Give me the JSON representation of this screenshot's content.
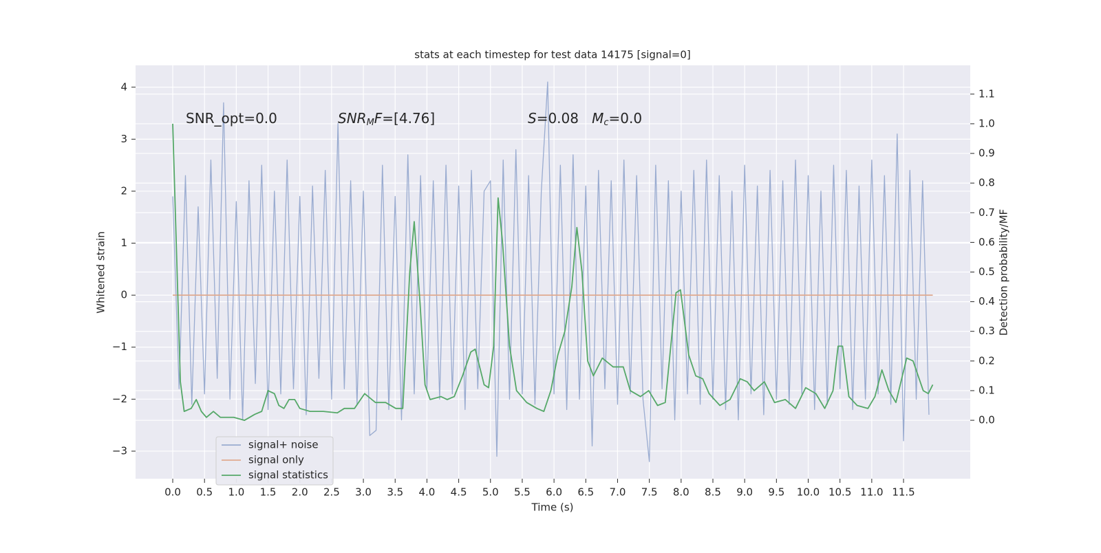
{
  "chart_data": {
    "type": "line",
    "title": "stats at each timestep for test data 14175 [signal=0]",
    "xlabel": "Time (s)",
    "ylabel": "Whitened strain",
    "y2label": "Detection probability/MF",
    "xlim": [
      -0.585,
      12.55
    ],
    "ylim": [
      -3.53,
      4.42
    ],
    "y2lim": [
      -0.197,
      1.197
    ],
    "xticks": [
      {
        "value": 0,
        "label": "0.0"
      },
      0.5,
      {
        "value": 1,
        "label": "1.0"
      },
      1.5,
      {
        "value": 2,
        "label": "2.0"
      },
      2.5,
      {
        "value": 3,
        "label": "3.0"
      },
      3.5,
      {
        "value": 4,
        "label": "4.0"
      },
      4.5,
      {
        "value": 5,
        "label": "5.0"
      },
      5.5,
      {
        "value": 6,
        "label": "6.0"
      },
      6.5,
      {
        "value": 7,
        "label": "7.0"
      },
      7.5,
      {
        "value": 8,
        "label": "8.0"
      },
      8.5,
      {
        "value": 9,
        "label": "9.0"
      },
      9.5,
      {
        "value": 10,
        "label": "10.0"
      },
      10.5,
      {
        "value": 11,
        "label": "11.0"
      },
      11.5
    ],
    "yticks": [
      {
        "value": -3,
        "label": "−3"
      },
      {
        "value": -2,
        "label": "−2"
      },
      {
        "value": -1,
        "label": "−1"
      },
      0,
      1,
      2,
      3,
      4
    ],
    "y2ticks": [
      {
        "value": 0,
        "label": "0.0"
      },
      0.1,
      0.2,
      0.3,
      0.4,
      0.5,
      0.6,
      0.7,
      0.8,
      0.9,
      {
        "value": 1,
        "label": "1.0"
      },
      1.1
    ],
    "grid": true,
    "legend": "lower left",
    "annotations": [
      [
        {
          "text": "SNR_opt=0.0"
        }
      ],
      [
        {
          "text": "SNR",
          "italic": true
        },
        {
          "text": "M",
          "italic": true,
          "sub": true
        },
        {
          "text": "F",
          "italic": true
        },
        {
          "text": "=[4.76]"
        }
      ],
      [
        {
          "text": "S",
          "italic": true
        },
        {
          "text": "=0.08   "
        },
        {
          "text": "M",
          "italic": true
        },
        {
          "text": "c",
          "italic": true,
          "sub": true
        },
        {
          "text": "=0.0"
        }
      ]
    ],
    "series": [
      {
        "name": "signal+ noise",
        "color": "#99abd0",
        "x": [
          0,
          0.1,
          0.2,
          0.3,
          0.4,
          0.5,
          0.6,
          0.7,
          0.8,
          0.9,
          1,
          1.1,
          1.2,
          1.3,
          1.4,
          1.5,
          1.6,
          1.7,
          1.8,
          1.9,
          2,
          2.1,
          2.2,
          2.3,
          2.4,
          2.5,
          2.6,
          2.7,
          2.8,
          2.9,
          3,
          3.1,
          3.2,
          3.3,
          3.4,
          3.5,
          3.6,
          3.7,
          3.8,
          3.9,
          4,
          4.1,
          4.2,
          4.3,
          4.4,
          4.5,
          4.6,
          4.7,
          4.8,
          4.9,
          5,
          5.1,
          5.2,
          5.3,
          5.4,
          5.5,
          5.6,
          5.7,
          5.8,
          5.9,
          6,
          6.1,
          6.2,
          6.3,
          6.4,
          6.5,
          6.6,
          6.7,
          6.8,
          6.9,
          7,
          7.1,
          7.2,
          7.3,
          7.4,
          7.5,
          7.6,
          7.7,
          7.8,
          7.9,
          8,
          8.1,
          8.2,
          8.3,
          8.4,
          8.5,
          8.6,
          8.7,
          8.8,
          8.9,
          9,
          9.1,
          9.2,
          9.3,
          9.4,
          9.5,
          9.6,
          9.7,
          9.8,
          9.9,
          10,
          10.1,
          10.2,
          10.3,
          10.4,
          10.5,
          10.6,
          10.7,
          10.8,
          10.9,
          11,
          11.1,
          11.2,
          11.3,
          11.4,
          11.5,
          11.6,
          11.7,
          11.8,
          11.9
        ],
        "values": [
          1.9,
          -1.8,
          2.3,
          -2.1,
          1.7,
          -1.9,
          2.6,
          -1.6,
          3.7,
          -2.0,
          1.8,
          -2.4,
          2.2,
          -1.7,
          2.5,
          -2.2,
          2.0,
          -1.9,
          2.6,
          -1.8,
          1.9,
          -2.3,
          2.1,
          -1.6,
          2.4,
          -2.0,
          3.3,
          -1.8,
          2.2,
          -2.1,
          2.0,
          -2.7,
          -2.6,
          2.5,
          -2.2,
          1.9,
          -2.4,
          2.7,
          -1.9,
          2.3,
          -1.8,
          2.2,
          -2.0,
          2.5,
          -1.9,
          2.1,
          -2.2,
          2.4,
          -1.8,
          2.0,
          2.2,
          -3.1,
          2.6,
          -2.0,
          2.8,
          -1.9,
          2.3,
          -2.1,
          2.0,
          4.1,
          -1.9,
          2.5,
          -2.2,
          2.7,
          -2.0,
          2.1,
          -2.9,
          2.4,
          -1.8,
          2.2,
          -2.1,
          2.6,
          -1.9,
          2.3,
          -2.0,
          -3.2,
          2.5,
          -1.8,
          2.2,
          -2.4,
          2.0,
          -1.9,
          2.4,
          -2.1,
          2.6,
          -2.0,
          2.3,
          -2.2,
          2.0,
          -2.4,
          2.5,
          -1.9,
          2.1,
          -2.3,
          2.4,
          -2.0,
          2.2,
          -2.1,
          2.6,
          -1.9,
          2.3,
          -2.2,
          2.0,
          -2.1,
          2.5,
          -1.8,
          2.4,
          -2.2,
          2.1,
          -2.0,
          2.6,
          -1.9,
          2.3,
          -2.1,
          3.1,
          -2.8,
          2.4,
          -2.0,
          2.2,
          -2.3
        ]
      },
      {
        "name": "signal only",
        "color": "#e0aa8f",
        "x": [
          0,
          11.96
        ],
        "values": [
          0,
          0
        ]
      },
      {
        "name": "signal statistics",
        "color": "#55a868",
        "axis": "y2",
        "x": [
          0,
          0.12,
          0.18,
          0.29,
          0.37,
          0.45,
          0.53,
          0.64,
          0.75,
          0.96,
          1.13,
          1.29,
          1.4,
          1.5,
          1.6,
          1.67,
          1.75,
          1.83,
          1.92,
          2,
          2.16,
          2.37,
          2.59,
          2.7,
          2.86,
          3.02,
          3.19,
          3.35,
          3.51,
          3.62,
          3.73,
          3.8,
          3.89,
          3.97,
          4.05,
          4.22,
          4.32,
          4.43,
          4.56,
          4.69,
          4.76,
          4.9,
          4.97,
          5.05,
          5.12,
          5.19,
          5.3,
          5.41,
          5.57,
          5.73,
          5.84,
          5.95,
          6.06,
          6.17,
          6.28,
          6.36,
          6.44,
          6.53,
          6.62,
          6.76,
          6.93,
          7.09,
          7.2,
          7.36,
          7.49,
          7.63,
          7.75,
          7.92,
          7.99,
          8.12,
          8.23,
          8.34,
          8.44,
          8.61,
          8.77,
          8.93,
          9.04,
          9.15,
          9.31,
          9.47,
          9.64,
          9.8,
          9.96,
          10.12,
          10.26,
          10.39,
          10.47,
          10.54,
          10.64,
          10.77,
          10.94,
          11.05,
          11.16,
          11.27,
          11.38,
          11.55,
          11.65,
          11.81,
          11.89,
          11.96
        ],
        "values": [
          1.0,
          0.13,
          0.03,
          0.04,
          0.07,
          0.03,
          0.01,
          0.03,
          0.01,
          0.01,
          0.0,
          0.02,
          0.03,
          0.1,
          0.09,
          0.05,
          0.04,
          0.07,
          0.07,
          0.04,
          0.03,
          0.03,
          0.025,
          0.04,
          0.04,
          0.09,
          0.06,
          0.06,
          0.04,
          0.04,
          0.5,
          0.67,
          0.4,
          0.12,
          0.07,
          0.08,
          0.07,
          0.08,
          0.15,
          0.23,
          0.24,
          0.12,
          0.11,
          0.25,
          0.75,
          0.6,
          0.25,
          0.1,
          0.06,
          0.04,
          0.03,
          0.1,
          0.22,
          0.3,
          0.45,
          0.65,
          0.5,
          0.2,
          0.15,
          0.21,
          0.18,
          0.18,
          0.1,
          0.08,
          0.1,
          0.05,
          0.06,
          0.43,
          0.44,
          0.22,
          0.15,
          0.14,
          0.09,
          0.05,
          0.07,
          0.14,
          0.13,
          0.1,
          0.13,
          0.06,
          0.07,
          0.04,
          0.11,
          0.09,
          0.04,
          0.1,
          0.25,
          0.25,
          0.08,
          0.05,
          0.04,
          0.08,
          0.17,
          0.1,
          0.06,
          0.21,
          0.2,
          0.1,
          0.09,
          0.12
        ]
      }
    ]
  }
}
